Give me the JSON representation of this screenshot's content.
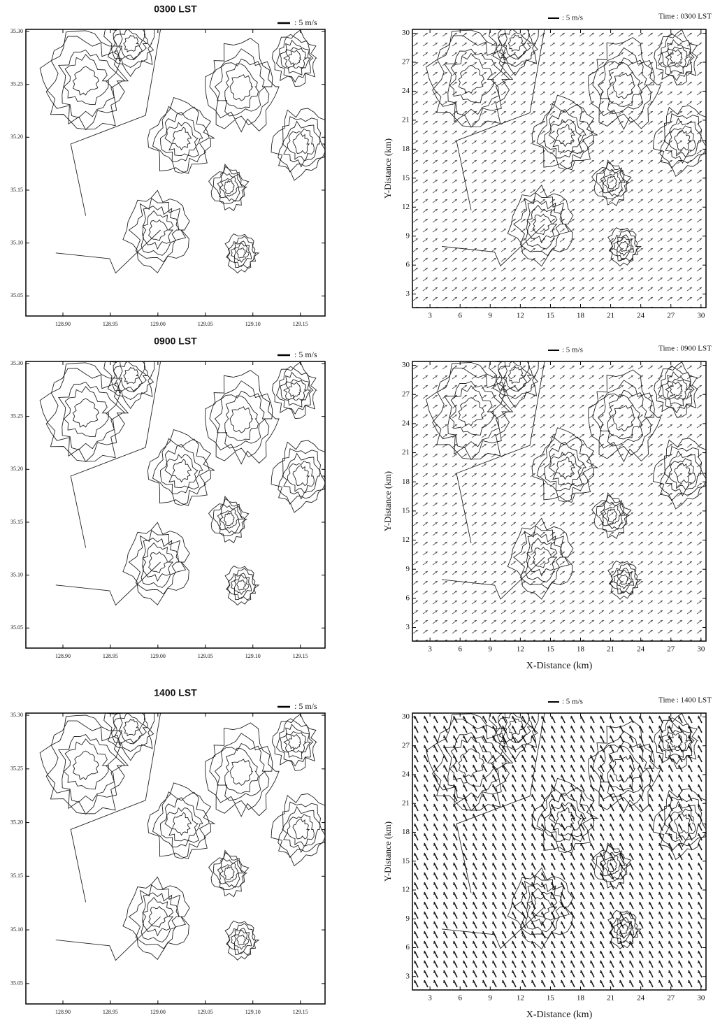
{
  "chart_data": [
    {
      "type": "map",
      "title": "0300 LST",
      "scale_label": ": 5 m/s",
      "xlim": [
        128.861,
        129.176
      ],
      "ylim": [
        35.031,
        35.302
      ],
      "xticks": [
        {
          "value": 128.9,
          "label": "128.90"
        },
        {
          "value": 128.95,
          "label": "128.95"
        },
        {
          "value": 129.0,
          "label": "129.00"
        },
        {
          "value": 129.05,
          "label": "129.05"
        },
        {
          "value": 129.1,
          "label": "129.10"
        },
        {
          "value": 129.15,
          "label": "129.15"
        }
      ],
      "yticks": [
        {
          "value": 35.05,
          "label": "35.05"
        },
        {
          "value": 35.1,
          "label": "35.10"
        },
        {
          "value": 35.15,
          "label": "35.15"
        },
        {
          "value": 35.2,
          "label": "35.20"
        },
        {
          "value": 35.25,
          "label": "35.25"
        },
        {
          "value": 35.3,
          "label": "35.30"
        }
      ]
    },
    {
      "type": "vector-map",
      "title": "Time : 0300 LST",
      "scale_label": ": 5 m/s",
      "y_label": "Y-Distance (km)",
      "xlim": [
        1.25,
        30.5
      ],
      "ylim": [
        1.6,
        30.4
      ],
      "xticks": [
        3,
        6,
        9,
        12,
        15,
        18,
        21,
        24,
        27,
        30
      ],
      "yticks": [
        3,
        6,
        9,
        12,
        15,
        18,
        21,
        24,
        27,
        30
      ]
    },
    {
      "type": "map",
      "title": "0900 LST",
      "scale_label": ": 5 m/s",
      "xlim": [
        128.861,
        129.176
      ],
      "ylim": [
        35.031,
        35.302
      ],
      "xticks": [
        {
          "value": 128.9,
          "label": "128.90"
        },
        {
          "value": 128.95,
          "label": "128.95"
        },
        {
          "value": 129.0,
          "label": "129.00"
        },
        {
          "value": 129.05,
          "label": "129.05"
        },
        {
          "value": 129.1,
          "label": "129.10"
        },
        {
          "value": 129.15,
          "label": "129.15"
        }
      ],
      "yticks": [
        {
          "value": 35.05,
          "label": "35.05"
        },
        {
          "value": 35.1,
          "label": "35.10"
        },
        {
          "value": 35.15,
          "label": "35.15"
        },
        {
          "value": 35.2,
          "label": "35.20"
        },
        {
          "value": 35.25,
          "label": "35.25"
        },
        {
          "value": 35.3,
          "label": "35.30"
        }
      ]
    },
    {
      "type": "vector-map",
      "title": "Time : 0900 LST",
      "scale_label": ": 5 m/s",
      "y_label": "Y-Distance (km)",
      "x_label": "X-Distance (km)",
      "xlim": [
        1.25,
        30.5
      ],
      "ylim": [
        1.6,
        30.4
      ],
      "xticks": [
        3,
        6,
        9,
        12,
        15,
        18,
        21,
        24,
        27,
        30
      ],
      "yticks": [
        3,
        6,
        9,
        12,
        15,
        18,
        21,
        24,
        27,
        30
      ]
    },
    {
      "type": "map",
      "title": "1400 LST",
      "scale_label": ": 5 m/s",
      "xlim": [
        128.861,
        129.176
      ],
      "ylim": [
        35.031,
        35.302
      ],
      "xticks": [
        {
          "value": 128.9,
          "label": "128.90"
        },
        {
          "value": 128.95,
          "label": "128.95"
        },
        {
          "value": 129.0,
          "label": "129.00"
        },
        {
          "value": 129.05,
          "label": "129.05"
        },
        {
          "value": 129.1,
          "label": "129.10"
        },
        {
          "value": 129.15,
          "label": "129.15"
        }
      ],
      "yticks": [
        {
          "value": 35.05,
          "label": "35.05"
        },
        {
          "value": 35.1,
          "label": "35.10"
        },
        {
          "value": 35.15,
          "label": "35.15"
        },
        {
          "value": 35.2,
          "label": "35.20"
        },
        {
          "value": 35.25,
          "label": "35.25"
        },
        {
          "value": 35.3,
          "label": "35.30"
        }
      ]
    },
    {
      "type": "vector-map",
      "title": "Time : 1400 LST",
      "scale_label": ": 5 m/s",
      "y_label": "Y-Distance (km)",
      "x_label": "X-Distance (km)",
      "xlim": [
        1.25,
        30.5
      ],
      "ylim": [
        1.6,
        30.4
      ],
      "xticks": [
        3,
        6,
        9,
        12,
        15,
        18,
        21,
        24,
        27,
        30
      ],
      "yticks": [
        3,
        6,
        9,
        12,
        15,
        18,
        21,
        24,
        27,
        30
      ]
    }
  ]
}
